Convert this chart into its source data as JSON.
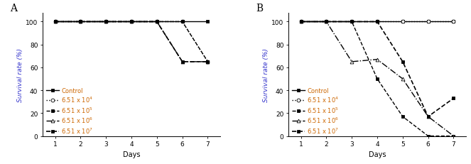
{
  "panel_A": {
    "label": "A",
    "series": [
      {
        "name": "Control",
        "x": [
          1,
          2,
          3,
          4,
          5,
          6,
          7
        ],
        "y": [
          100,
          100,
          100,
          100,
          100,
          100,
          100
        ],
        "linestyle": "-",
        "marker": "s",
        "markerfacecolor": "black",
        "markersize": 3.5,
        "color": "black",
        "linewidth": 1.0
      },
      {
        "name": "6.51 x 10$^4$",
        "x": [
          1,
          2,
          3,
          4,
          5,
          6,
          7
        ],
        "y": [
          100,
          100,
          100,
          100,
          100,
          100,
          65
        ],
        "linestyle": ":",
        "marker": "o",
        "markerfacecolor": "white",
        "markersize": 3.5,
        "color": "black",
        "linewidth": 1.0
      },
      {
        "name": "6.51 x 10$^5$",
        "x": [
          1,
          2,
          3,
          4,
          5,
          6,
          7
        ],
        "y": [
          100,
          100,
          100,
          100,
          100,
          100,
          65
        ],
        "linestyle": "--",
        "marker": "s",
        "markerfacecolor": "black",
        "markersize": 3.5,
        "color": "black",
        "linewidth": 1.0
      },
      {
        "name": "6.51 x 10$^6$",
        "x": [
          1,
          2,
          3,
          4,
          5,
          6,
          7
        ],
        "y": [
          100,
          100,
          100,
          100,
          100,
          65,
          65
        ],
        "linestyle": "-.",
        "marker": "^",
        "markerfacecolor": "white",
        "markersize": 3.5,
        "color": "black",
        "linewidth": 1.0
      },
      {
        "name": "6.51 x 10$^7$",
        "x": [
          1,
          2,
          3,
          4,
          5,
          6,
          7
        ],
        "y": [
          100,
          100,
          100,
          100,
          100,
          65,
          65
        ],
        "linestyle": "--",
        "marker": "s",
        "markerfacecolor": "black",
        "markersize": 3.5,
        "color": "black",
        "linewidth": 1.0
      }
    ]
  },
  "panel_B": {
    "label": "B",
    "series": [
      {
        "name": "Control",
        "x": [
          1,
          2,
          3,
          4,
          5,
          6,
          7
        ],
        "y": [
          100,
          100,
          100,
          100,
          100,
          100,
          100
        ],
        "linestyle": "-",
        "marker": "s",
        "markerfacecolor": "black",
        "markersize": 3.5,
        "color": "black",
        "linewidth": 1.0
      },
      {
        "name": "6.51 x 10$^4$",
        "x": [
          1,
          2,
          3,
          4,
          5,
          6,
          7
        ],
        "y": [
          100,
          100,
          100,
          100,
          100,
          100,
          100
        ],
        "linestyle": ":",
        "marker": "o",
        "markerfacecolor": "white",
        "markersize": 3.5,
        "color": "black",
        "linewidth": 1.0
      },
      {
        "name": "6.51 x 10$^5$",
        "x": [
          1,
          2,
          3,
          4,
          5,
          6,
          7
        ],
        "y": [
          100,
          100,
          100,
          50,
          17,
          0,
          0
        ],
        "linestyle": "--",
        "marker": "s",
        "markerfacecolor": "black",
        "markersize": 3.5,
        "color": "black",
        "linewidth": 1.0
      },
      {
        "name": "6.51 x 10$^6$",
        "x": [
          1,
          2,
          3,
          4,
          5,
          6,
          7
        ],
        "y": [
          100,
          100,
          65,
          67,
          50,
          17,
          0
        ],
        "linestyle": "-.",
        "marker": "^",
        "markerfacecolor": "white",
        "markersize": 3.5,
        "color": "black",
        "linewidth": 1.0
      },
      {
        "name": "6.51 x 10$^7$",
        "x": [
          1,
          2,
          3,
          4,
          5,
          6,
          7
        ],
        "y": [
          100,
          100,
          100,
          100,
          65,
          17,
          33
        ],
        "linestyle": "--",
        "marker": "s",
        "markerfacecolor": "black",
        "markersize": 3.5,
        "color": "black",
        "linewidth": 1.0
      }
    ]
  },
  "ylabel": "Survival rate (%)",
  "xlabel": "Days",
  "legend_text_color": "#cc6600",
  "ylabel_color": "#3333cc",
  "background_color": "#ffffff",
  "fontsize": 6.5,
  "panel_label_fontsize": 10,
  "yticks": [
    0,
    20,
    40,
    60,
    80,
    100
  ],
  "xticks": [
    1,
    2,
    3,
    4,
    5,
    6,
    7
  ],
  "ylim": [
    0,
    108
  ],
  "xlim": [
    0.5,
    7.5
  ]
}
